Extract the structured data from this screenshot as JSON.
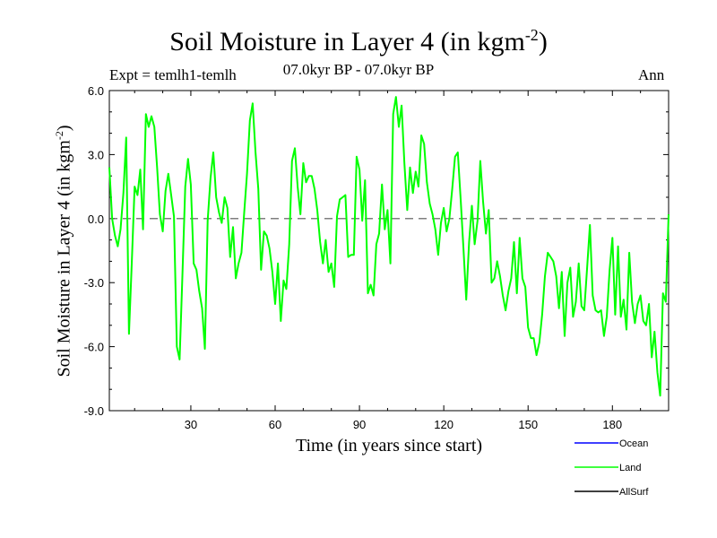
{
  "header": {
    "title": "Soil Moisture in Layer 4 (in kgm",
    "title_sup": "-2",
    "title_close": ")",
    "expt": "Expt = temlh1-temlh",
    "period": "07.0kyr BP - 07.0kyr BP",
    "season": "Ann"
  },
  "axes": {
    "ylabel": "Soil Moisture in Layer 4 (in kgm",
    "ylabel_sup": "-2",
    "ylabel_close": ")",
    "xlabel": "Time (in years since start)"
  },
  "legend": [
    {
      "name": "Ocean",
      "color": "#0000ff"
    },
    {
      "name": "Land",
      "color": "#00ff00"
    },
    {
      "name": "AllSurf",
      "color": "#000000"
    }
  ],
  "chart_data": {
    "type": "line",
    "title": "Soil Moisture in Layer 4 (in kgm-2)",
    "xlabel": "Time (in years since start)",
    "ylabel": "Soil Moisture in Layer 4 (in kgm-2)",
    "xlim": [
      1,
      200
    ],
    "ylim": [
      -9.0,
      6.0
    ],
    "xticks": [
      30,
      60,
      90,
      120,
      150,
      180
    ],
    "xtick_labels": [
      "30",
      "60",
      "90",
      "120",
      "150",
      "180"
    ],
    "yticks": [
      -9.0,
      -6.0,
      -3.0,
      0.0,
      3.0,
      6.0
    ],
    "ytick_labels": [
      "-9.0",
      "-6.0",
      "-3.0",
      "0.0",
      "3.0",
      "6.0"
    ],
    "zero_line": "dashed",
    "series": [
      {
        "name": "Land",
        "color": "#00ff00",
        "x": [
          1,
          2,
          3,
          4,
          5,
          6,
          7,
          8,
          9,
          10,
          11,
          12,
          13,
          14,
          15,
          16,
          17,
          18,
          19,
          20,
          21,
          22,
          23,
          24,
          25,
          26,
          27,
          28,
          29,
          30,
          31,
          32,
          33,
          34,
          35,
          36,
          37,
          38,
          39,
          40,
          41,
          42,
          43,
          44,
          45,
          46,
          47,
          48,
          49,
          50,
          51,
          52,
          53,
          54,
          55,
          56,
          57,
          58,
          59,
          60,
          61,
          62,
          63,
          64,
          65,
          66,
          67,
          68,
          69,
          70,
          71,
          72,
          73,
          74,
          75,
          76,
          77,
          78,
          79,
          80,
          81,
          82,
          83,
          84,
          85,
          86,
          87,
          88,
          89,
          90,
          91,
          92,
          93,
          94,
          95,
          96,
          97,
          98,
          99,
          100,
          101,
          102,
          103,
          104,
          105,
          106,
          107,
          108,
          109,
          110,
          111,
          112,
          113,
          114,
          115,
          116,
          117,
          118,
          119,
          120,
          121,
          122,
          123,
          124,
          125,
          126,
          127,
          128,
          129,
          130,
          131,
          132,
          133,
          134,
          135,
          136,
          137,
          138,
          139,
          140,
          141,
          142,
          143,
          144,
          145,
          146,
          147,
          148,
          149,
          150,
          151,
          152,
          153,
          154,
          155,
          156,
          157,
          158,
          159,
          160,
          161,
          162,
          163,
          164,
          165,
          166,
          167,
          168,
          169,
          170,
          171,
          172,
          173,
          174,
          175,
          176,
          177,
          178,
          179,
          180,
          181,
          182,
          183,
          184,
          185,
          186,
          187,
          188,
          189,
          190,
          191,
          192,
          193,
          194,
          195,
          196,
          197,
          198,
          199,
          200
        ],
        "values": [
          2.4,
          0.0,
          -0.8,
          -1.3,
          -0.5,
          1.2,
          3.8,
          -5.4,
          -2.0,
          1.5,
          1.1,
          2.3,
          -0.5,
          4.9,
          4.3,
          4.8,
          4.3,
          2.4,
          0.2,
          -0.6,
          1.3,
          2.1,
          1.1,
          0.1,
          -6.0,
          -6.6,
          -2.7,
          1.5,
          2.8,
          1.6,
          -2.1,
          -2.4,
          -3.4,
          -4.2,
          -6.1,
          -0.1,
          1.9,
          3.1,
          1.0,
          0.3,
          -0.2,
          1.0,
          0.5,
          -1.8,
          -0.4,
          -2.8,
          -2.1,
          -1.6,
          0.3,
          2.1,
          4.6,
          5.4,
          3.1,
          1.4,
          -2.4,
          -0.6,
          -0.8,
          -1.4,
          -2.5,
          -4.0,
          -2.1,
          -4.8,
          -2.9,
          -3.3,
          -1.2,
          2.7,
          3.3,
          1.5,
          0.2,
          2.6,
          1.7,
          2.0,
          2.0,
          1.4,
          0.4,
          -1.1,
          -2.1,
          -1.0,
          -2.5,
          -2.1,
          -3.2,
          0.1,
          0.9,
          1.0,
          1.1,
          -1.8,
          -1.7,
          -1.7,
          2.9,
          2.3,
          -0.1,
          1.8,
          -3.5,
          -3.1,
          -3.6,
          -1.2,
          -0.7,
          1.6,
          -0.5,
          0.4,
          -2.1,
          4.9,
          5.7,
          4.3,
          5.3,
          2.6,
          0.4,
          2.4,
          1.2,
          2.2,
          1.5,
          3.9,
          3.5,
          1.7,
          0.7,
          0.2,
          -0.5,
          -1.7,
          -0.2,
          0.5,
          -0.6,
          0.0,
          1.4,
          2.9,
          3.1,
          0.9,
          -1.4,
          -3.8,
          -1.1,
          0.6,
          -1.2,
          -0.1,
          2.7,
          0.8,
          -0.7,
          0.4,
          -3.0,
          -2.8,
          -2.0,
          -2.7,
          -3.6,
          -4.3,
          -3.4,
          -2.8,
          -1.1,
          -3.5,
          -0.9,
          -2.8,
          -3.2,
          -5.1,
          -5.6,
          -5.6,
          -6.4,
          -5.8,
          -4.5,
          -2.7,
          -1.6,
          -1.8,
          -2.0,
          -2.7,
          -4.2,
          -2.5,
          -5.5,
          -3.0,
          -2.3,
          -4.6,
          -3.9,
          -2.1,
          -4.1,
          -4.3,
          -2.3,
          -0.3,
          -3.6,
          -4.3,
          -4.4,
          -4.3,
          -5.5,
          -4.6,
          -2.4,
          -0.9,
          -4.5,
          -1.3,
          -4.6,
          -3.8,
          -5.2,
          -1.6,
          -3.9,
          -4.9,
          -4.0,
          -3.6,
          -4.8,
          -5.0,
          -4.0,
          -6.5,
          -5.3,
          -7.2,
          -8.3,
          -3.5,
          -3.9,
          0.2
        ]
      }
    ]
  }
}
